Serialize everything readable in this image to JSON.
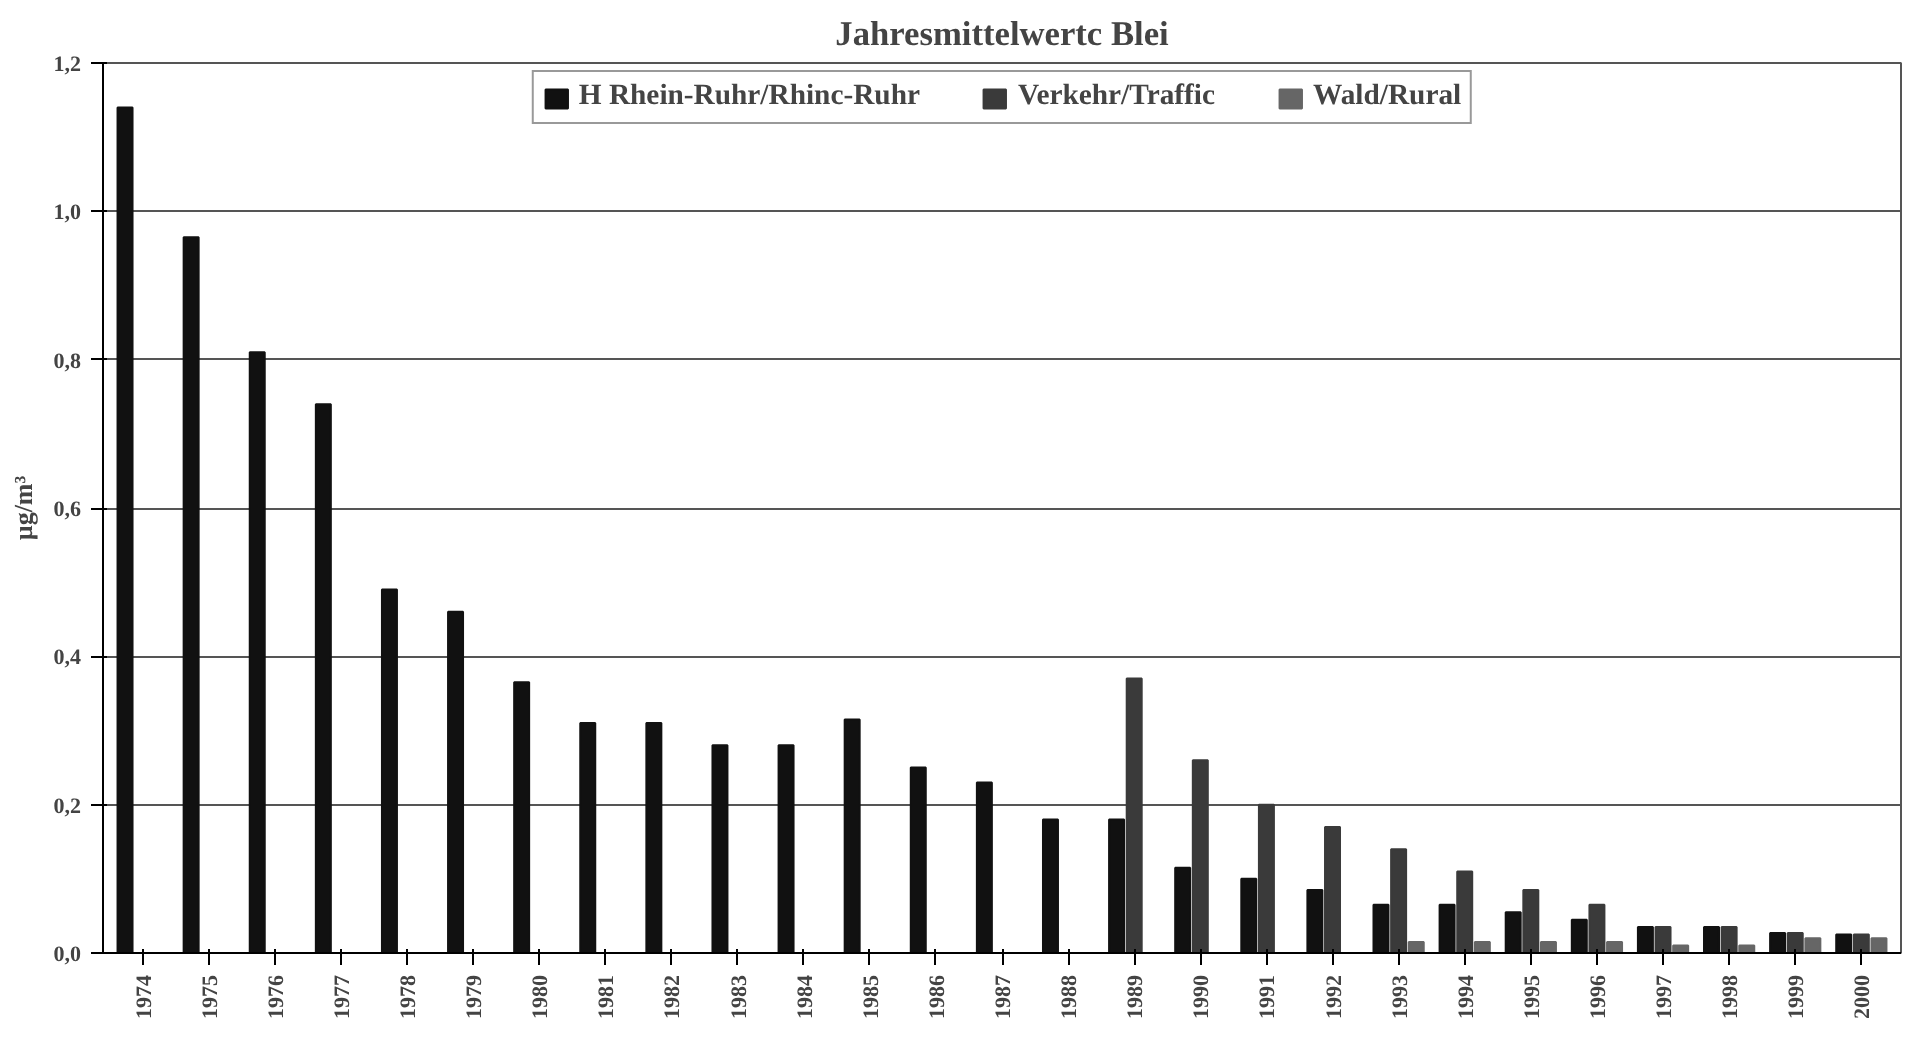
{
  "chart_data": {
    "type": "bar",
    "title": "Jahresmittelwertc Blei",
    "ylabel": "µg/m³",
    "categories": [
      "1974",
      "1975",
      "1976",
      "1977",
      "1978",
      "1979",
      "1980",
      "1981",
      "1982",
      "1983",
      "1984",
      "1985",
      "1986",
      "1987",
      "1988",
      "1989",
      "1990",
      "1991",
      "1992",
      "1993",
      "1994",
      "1995",
      "1996",
      "1997",
      "1998",
      "1999",
      "2000"
    ],
    "series": [
      {
        "name": "H Rhein-Ruhr/Rhinc-Ruhr",
        "color": "#111111",
        "values": [
          1.14,
          0.965,
          0.81,
          0.74,
          0.49,
          0.46,
          0.365,
          0.31,
          0.31,
          0.28,
          0.28,
          0.315,
          0.25,
          0.23,
          0.18,
          0.18,
          0.115,
          0.1,
          0.085,
          0.065,
          0.065,
          0.055,
          0.045,
          0.035,
          0.035,
          0.027,
          0.025
        ]
      },
      {
        "name": "Verkehr/Traffic",
        "color": "#3a3a3a",
        "values": [
          null,
          null,
          null,
          null,
          null,
          null,
          null,
          null,
          null,
          null,
          null,
          null,
          null,
          null,
          null,
          0.37,
          0.26,
          0.2,
          0.17,
          0.14,
          0.11,
          0.085,
          0.065,
          0.035,
          0.035,
          0.027,
          0.025
        ]
      },
      {
        "name": "Wald/Rural",
        "color": "#666666",
        "values": [
          null,
          null,
          null,
          null,
          null,
          null,
          null,
          null,
          null,
          null,
          null,
          null,
          null,
          null,
          null,
          null,
          null,
          null,
          null,
          0.015,
          0.015,
          0.015,
          0.015,
          0.01,
          0.01,
          0.02,
          0.02
        ]
      }
    ],
    "ylim": [
      0,
      1.2
    ],
    "yticks": [
      {
        "value": 0,
        "label": "0,0"
      },
      {
        "value": 0.2,
        "label": "0,2"
      },
      {
        "value": 0.4,
        "label": "0,4"
      },
      {
        "value": 0.6,
        "label": "0,6"
      },
      {
        "value": 0.8,
        "label": "0,8"
      },
      {
        "value": 1.0,
        "label": "1,0"
      },
      {
        "value": 1.2,
        "label": "1,2"
      }
    ],
    "grid": "y",
    "legend": "top"
  }
}
